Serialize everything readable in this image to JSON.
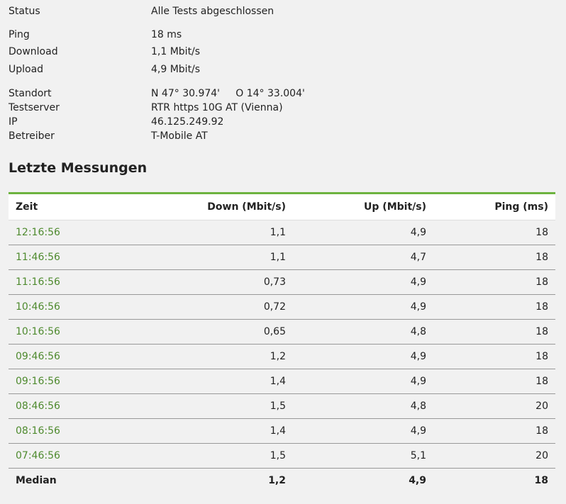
{
  "info": {
    "status": {
      "label": "Status",
      "value": "Alle Tests abgeschlossen"
    },
    "ping": {
      "label": "Ping",
      "value": "18 ms"
    },
    "download": {
      "label": "Download",
      "value": "1,1 Mbit/s"
    },
    "upload": {
      "label": "Upload",
      "value": "4,9 Mbit/s"
    },
    "standort": {
      "label": "Standort",
      "value": "N 47° 30.974'     O 14° 33.004'"
    },
    "testserver": {
      "label": "Testserver",
      "value": "RTR https 10G AT (Vienna)"
    },
    "ip": {
      "label": "IP",
      "value": "46.125.249.92"
    },
    "betreiber": {
      "label": "Betreiber",
      "value": "T-Mobile AT"
    }
  },
  "section_title": "Letzte Messungen",
  "table": {
    "headers": {
      "time": "Zeit",
      "down": "Down (Mbit/s)",
      "up": "Up (Mbit/s)",
      "ping": "Ping (ms)"
    },
    "rows": [
      {
        "time": "12:16:56",
        "down": "1,1",
        "up": "4,9",
        "ping": "18"
      },
      {
        "time": "11:46:56",
        "down": "1,1",
        "up": "4,7",
        "ping": "18"
      },
      {
        "time": "11:16:56",
        "down": "0,73",
        "up": "4,9",
        "ping": "18"
      },
      {
        "time": "10:46:56",
        "down": "0,72",
        "up": "4,9",
        "ping": "18"
      },
      {
        "time": "10:16:56",
        "down": "0,65",
        "up": "4,8",
        "ping": "18"
      },
      {
        "time": "09:46:56",
        "down": "1,2",
        "up": "4,9",
        "ping": "18"
      },
      {
        "time": "09:16:56",
        "down": "1,4",
        "up": "4,9",
        "ping": "18"
      },
      {
        "time": "08:46:56",
        "down": "1,5",
        "up": "4,8",
        "ping": "20"
      },
      {
        "time": "08:16:56",
        "down": "1,4",
        "up": "4,9",
        "ping": "18"
      },
      {
        "time": "07:46:56",
        "down": "1,5",
        "up": "5,1",
        "ping": "20"
      }
    ],
    "median": {
      "label": "Median",
      "down": "1,2",
      "up": "4,9",
      "ping": "18"
    }
  },
  "colors": {
    "accent": "#6db33f",
    "link": "#4e8a2e",
    "background": "#f1f1f1"
  }
}
